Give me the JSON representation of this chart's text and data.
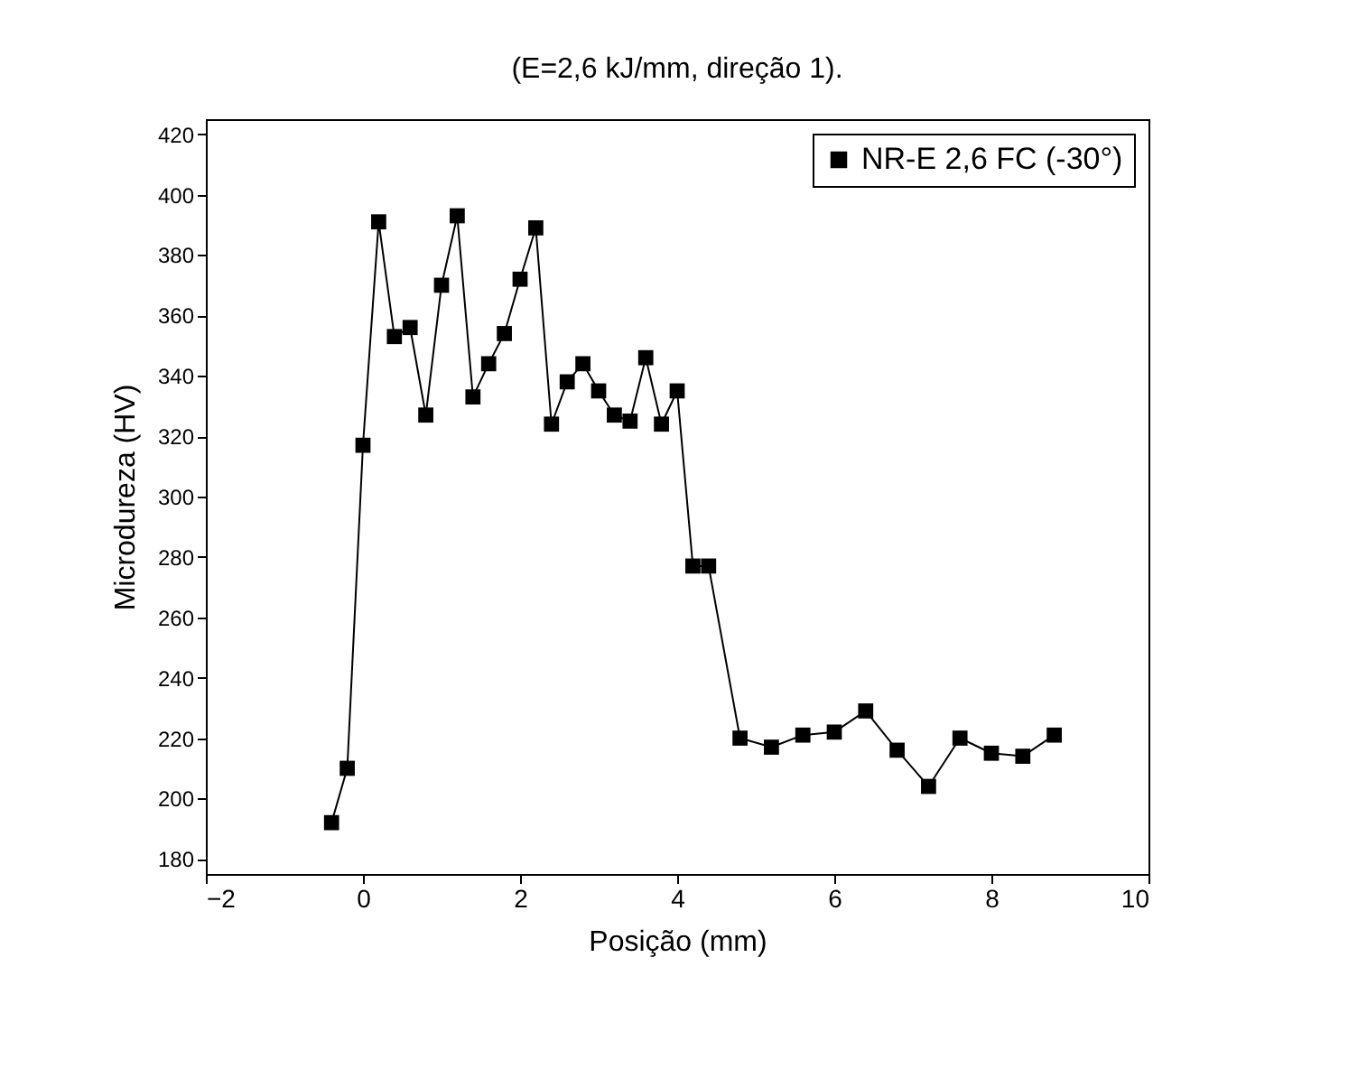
{
  "chart_data": {
    "type": "line",
    "title": "(E=2,6 kJ/mm, direção 1).",
    "xlabel": "Posição (mm)",
    "ylabel": "Microdureza (HV)",
    "x": [
      -0.4,
      -0.2,
      0,
      0.2,
      0.4,
      0.6,
      0.8,
      1.0,
      1.2,
      1.4,
      1.6,
      1.8,
      2.0,
      2.2,
      2.4,
      2.6,
      2.8,
      3.0,
      3.2,
      3.4,
      3.6,
      3.8,
      4.0,
      4.2,
      4.4,
      4.8,
      5.2,
      5.6,
      6.0,
      6.4,
      6.8,
      7.2,
      7.6,
      8.0,
      8.4,
      8.8
    ],
    "series": [
      {
        "name": "NR-E 2,6 FC (-30°)",
        "color": "#000000",
        "values": [
          192,
          210,
          317,
          391,
          353,
          356,
          327,
          370,
          393,
          333,
          344,
          354,
          372,
          389,
          324,
          338,
          344,
          335,
          327,
          325,
          346,
          324,
          335,
          277,
          277,
          220,
          217,
          221,
          222,
          229,
          216,
          204,
          220,
          215,
          214,
          221
        ]
      }
    ],
    "xlim": [
      -2,
      10
    ],
    "xticks": [
      -2,
      0,
      2,
      4,
      6,
      8,
      10
    ],
    "ylim": [
      175,
      425
    ],
    "yticks": [
      180,
      200,
      220,
      240,
      260,
      280,
      300,
      320,
      340,
      360,
      380,
      400,
      420
    ],
    "marker": "square",
    "line_style": "solid",
    "legend": "top right",
    "grid": false
  }
}
